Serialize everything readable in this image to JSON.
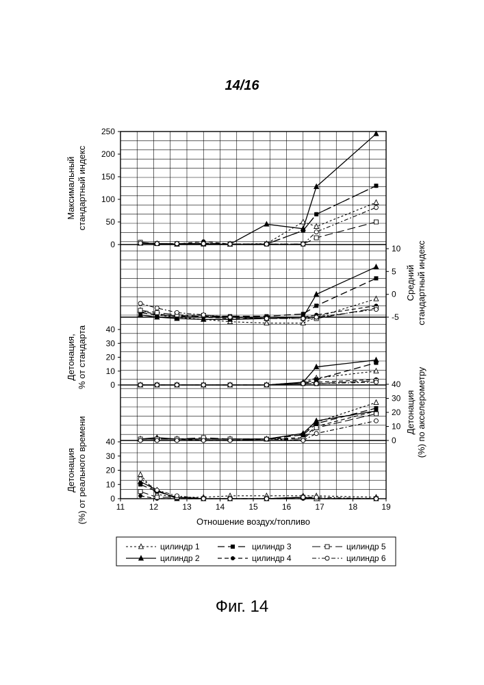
{
  "page": {
    "label": "14/16",
    "caption": "Фиг. 14"
  },
  "chart_data": {
    "type": "line",
    "xlabel": "Отношение воздух/топливо",
    "x_ticks": [
      "11",
      "12",
      "13",
      "14",
      "15",
      "16",
      "17",
      "18",
      "19"
    ],
    "xlim": [
      11,
      19
    ],
    "grid": true,
    "legend_position": "bottom",
    "legend": [
      {
        "name": "цилиндр 1",
        "style": "short-dash",
        "marker": "open-triangle"
      },
      {
        "name": "цилиндр 2",
        "style": "solid",
        "marker": "filled-triangle"
      },
      {
        "name": "цилиндр 3",
        "style": "long-dash",
        "marker": "filled-square"
      },
      {
        "name": "цилиндр 4",
        "style": "dash",
        "marker": "filled-circle"
      },
      {
        "name": "цилиндр 5",
        "style": "long-dash",
        "marker": "open-square"
      },
      {
        "name": "цилиндр 6",
        "style": "dash-dot",
        "marker": "open-circle"
      }
    ],
    "panels": [
      {
        "id": "max_index",
        "ylabel_lines": [
          "Максимальный",
          "стандартный индекс"
        ],
        "y_side": "left",
        "ylim": [
          0,
          250
        ],
        "y_ticks": [
          "250",
          "200",
          "150",
          "100",
          "50",
          "0"
        ],
        "x": [
          11.6,
          12.1,
          12.7,
          13.5,
          14.3,
          15.4,
          16.5,
          16.9,
          18.7
        ],
        "series": [
          {
            "name": "цилиндр 1",
            "values": [
              3,
              2,
              1,
              3,
              1,
              2,
              50,
              40,
              93
            ]
          },
          {
            "name": "цилиндр 2",
            "values": [
              3,
              2,
              1,
              1,
              1,
              45,
              35,
              128,
              245
            ]
          },
          {
            "name": "цилиндр 3",
            "values": [
              4,
              2,
              1,
              3,
              1,
              1,
              31,
              67,
              130
            ]
          },
          {
            "name": "цилиндр 4",
            "values": [
              4,
              2,
              1,
              7,
              1,
              1,
              31,
              67,
              130
            ]
          },
          {
            "name": "цилиндр 5",
            "values": [
              5,
              2,
              2,
              2,
              1,
              1,
              1,
              15,
              50
            ]
          },
          {
            "name": "цилиндр 6",
            "values": [
              3,
              2,
              2,
              2,
              1,
              1,
              1,
              28,
              82
            ]
          }
        ]
      },
      {
        "id": "mean_index",
        "ylabel_lines": [
          "Средний",
          "стандартный индекс"
        ],
        "y_side": "right",
        "ylim": [
          -5,
          10
        ],
        "y_ticks": [
          "10",
          "5",
          "0",
          "-5"
        ],
        "x": [
          11.6,
          12.1,
          12.7,
          13.5,
          14.3,
          15.4,
          16.5,
          16.9,
          18.7
        ],
        "series": [
          {
            "name": "цилиндр 1",
            "values": [
              -3.5,
              -4.5,
              -5.0,
              -5.5,
              -6.0,
              -6.3,
              -6.3,
              -5.0,
              -1.0
            ]
          },
          {
            "name": "цилиндр 2",
            "values": [
              -4.5,
              -5.0,
              -5.3,
              -5.5,
              -5.5,
              -5.3,
              -5.0,
              0.0,
              6.0
            ]
          },
          {
            "name": "цилиндр 3",
            "values": [
              -4.0,
              -4.5,
              -4.7,
              -4.8,
              -4.8,
              -4.8,
              -4.3,
              -2.5,
              3.5
            ]
          },
          {
            "name": "цилиндр 4",
            "values": [
              -3.8,
              -4.3,
              -4.8,
              -5.0,
              -5.3,
              -5.3,
              -5.0,
              -4.5,
              -2.5
            ]
          },
          {
            "name": "цилиндр 5",
            "values": [
              -3.5,
              -4.0,
              -4.5,
              -4.6,
              -5.0,
              -5.3,
              -5.3,
              -5.3,
              -3.0
            ]
          },
          {
            "name": "цилиндр 6",
            "values": [
              -2.0,
              -3.0,
              -4.0,
              -4.5,
              -5.0,
              -5.3,
              -5.3,
              -5.0,
              -3.3
            ]
          }
        ]
      },
      {
        "id": "knock_std",
        "ylabel_lines": [
          "Детонация,",
          "% от стандарта"
        ],
        "y_side": "left",
        "ylim": [
          0,
          40
        ],
        "y_ticks": [
          "40",
          "30",
          "20",
          "10",
          "0"
        ],
        "x": [
          11.6,
          12.1,
          12.7,
          13.5,
          14.3,
          15.4,
          16.5,
          16.9,
          18.7
        ],
        "series": [
          {
            "name": "цилиндр 1",
            "values": [
              0,
              0,
              0,
              0,
              0,
              0,
              2,
              5,
              10
            ]
          },
          {
            "name": "цилиндр 2",
            "values": [
              0,
              0,
              0,
              0,
              0,
              0,
              2,
              13,
              18
            ]
          },
          {
            "name": "цилиндр 3",
            "values": [
              0,
              0,
              0,
              0,
              0,
              0,
              1,
              4,
              16
            ]
          },
          {
            "name": "цилиндр 4",
            "values": [
              0,
              0,
              0,
              0,
              0,
              0,
              1,
              2,
              4
            ]
          },
          {
            "name": "цилиндр 5",
            "values": [
              0,
              0,
              0,
              0,
              0,
              0,
              1,
              1,
              3
            ]
          },
          {
            "name": "цилиндр 6",
            "values": [
              0,
              0,
              0,
              0,
              0,
              0,
              1,
              1,
              2
            ]
          }
        ]
      },
      {
        "id": "knock_accel",
        "ylabel_lines": [
          "Детонация",
          "(%) по акселерометру"
        ],
        "y_side": "right",
        "ylim": [
          0,
          40
        ],
        "y_ticks": [
          "40",
          "30",
          "20",
          "10",
          "0"
        ],
        "x": [
          11.6,
          12.1,
          12.7,
          13.5,
          14.3,
          15.4,
          16.5,
          16.9,
          18.7
        ],
        "series": [
          {
            "name": "цилиндр 1",
            "values": [
              1,
              1,
              1,
              1,
              1,
              1,
              5,
              13,
              27
            ]
          },
          {
            "name": "цилиндр 2",
            "values": [
              1,
              2,
              1,
              1,
              1,
              1,
              5,
              14,
              21
            ]
          },
          {
            "name": "цилиндр 3",
            "values": [
              1,
              1,
              1,
              1,
              1,
              1,
              4,
              12,
              23
            ]
          },
          {
            "name": "цилиндр 4",
            "values": [
              1,
              1,
              1,
              0,
              0,
              1,
              2,
              10,
              21
            ]
          },
          {
            "name": "цилиндр 5",
            "values": [
              1,
              1,
              1,
              2,
              1,
              1,
              1,
              9,
              19
            ]
          },
          {
            "name": "цилиндр 6",
            "values": [
              0,
              0,
              0,
              0,
              0,
              1,
              0,
              5,
              14
            ]
          }
        ]
      },
      {
        "id": "knock_rt",
        "ylabel_lines": [
          "Детонация",
          "(%) от реального времени"
        ],
        "y_side": "left",
        "ylim": [
          0,
          40
        ],
        "y_ticks": [
          "40",
          "30",
          "20",
          "10",
          "0"
        ],
        "x": [
          11.6,
          12.1,
          12.7,
          13.5,
          14.3,
          15.4,
          16.5,
          16.9,
          18.7
        ],
        "series": [
          {
            "name": "цилиндр 1",
            "values": [
              17,
              3,
              1,
              1,
              2,
              2,
              2,
              2,
              1
            ]
          },
          {
            "name": "цилиндр 2",
            "values": [
              12,
              6,
              0,
              0,
              0,
              0,
              1,
              0,
              0
            ]
          },
          {
            "name": "цилиндр 3",
            "values": [
              10,
              5,
              1,
              0,
              0,
              0,
              1,
              0,
              0
            ]
          },
          {
            "name": "цилиндр 4",
            "values": [
              2,
              0,
              0,
              0,
              0,
              0,
              0,
              0,
              0
            ]
          },
          {
            "name": "цилиндр 5",
            "values": [
              5,
              1,
              1,
              0,
              0,
              0,
              1,
              0,
              0
            ]
          },
          {
            "name": "цилиндр 6",
            "values": [
              14,
              6,
              2,
              0,
              0,
              0,
              1,
              1,
              0
            ]
          }
        ]
      }
    ]
  }
}
